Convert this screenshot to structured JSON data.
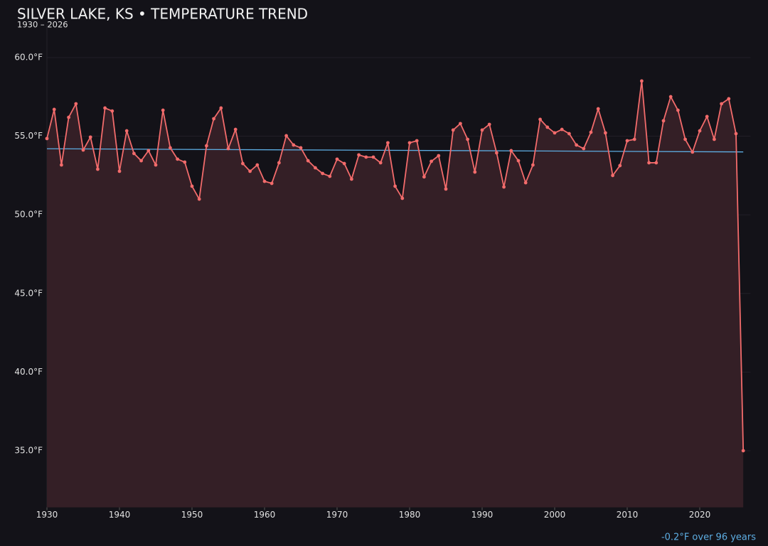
{
  "chart_data": {
    "type": "line",
    "title": "SILVER LAKE, KS • TEMPERATURE TREND",
    "subtitle": "1930 – 2026",
    "annotation": "-0.2°F over 96 years",
    "x": [
      1930,
      1931,
      1932,
      1933,
      1934,
      1935,
      1936,
      1937,
      1938,
      1939,
      1940,
      1941,
      1942,
      1943,
      1944,
      1945,
      1946,
      1947,
      1948,
      1949,
      1950,
      1951,
      1952,
      1953,
      1954,
      1955,
      1956,
      1957,
      1958,
      1959,
      1960,
      1961,
      1962,
      1963,
      1964,
      1965,
      1966,
      1967,
      1968,
      1969,
      1970,
      1971,
      1972,
      1973,
      1974,
      1975,
      1976,
      1977,
      1978,
      1979,
      1980,
      1981,
      1982,
      1983,
      1984,
      1985,
      1986,
      1987,
      1988,
      1989,
      1990,
      1991,
      1992,
      1993,
      1994,
      1995,
      1996,
      1997,
      1998,
      1999,
      2000,
      2001,
      2002,
      2003,
      2004,
      2005,
      2006,
      2007,
      2008,
      2009,
      2010,
      2011,
      2012,
      2013,
      2014,
      2015,
      2016,
      2017,
      2018,
      2019,
      2020,
      2021,
      2022,
      2023,
      2024,
      2025,
      2026
    ],
    "series": [
      {
        "color": "#f26b6b",
        "fill": "#341f26",
        "values": [
          54.85,
          56.7,
          53.17,
          56.2,
          57.06,
          54.12,
          54.94,
          52.9,
          56.79,
          56.6,
          52.77,
          55.34,
          53.9,
          53.44,
          54.08,
          53.17,
          56.65,
          54.26,
          53.54,
          53.35,
          51.82,
          51.0,
          54.39,
          56.11,
          56.79,
          54.21,
          55.43,
          53.26,
          52.77,
          53.17,
          52.13,
          52.0,
          53.31,
          55.03,
          54.44,
          54.26,
          53.44,
          52.99,
          52.63,
          52.45,
          53.54,
          53.26,
          52.27,
          53.81,
          53.67,
          53.67,
          53.31,
          54.58,
          51.82,
          51.05,
          54.58,
          54.71,
          52.41,
          53.4,
          53.76,
          51.64,
          55.39,
          55.8,
          54.8,
          52.72,
          55.39,
          55.75,
          53.94,
          51.77,
          54.08,
          53.44,
          52.04,
          53.17,
          56.07,
          55.57,
          55.21,
          55.43,
          55.16,
          54.44,
          54.21,
          55.25,
          56.74,
          55.21,
          52.5,
          53.13,
          54.71,
          54.8,
          58.51,
          53.31,
          53.31,
          55.98,
          57.51,
          56.65,
          54.8,
          53.99,
          55.34,
          56.25,
          54.8,
          57.06,
          57.38,
          55.16,
          35.0
        ]
      }
    ],
    "trend_line": {
      "color": "#5dade2",
      "x": [
        1930,
        2026
      ],
      "values": [
        54.2,
        54.0
      ]
    },
    "xlim": [
      1930,
      2027
    ],
    "ylim": [
      31.4,
      62.1
    ],
    "xticks": [
      1930,
      1940,
      1950,
      1960,
      1970,
      1980,
      1990,
      2000,
      2010,
      2020
    ],
    "yticks": [
      {
        "value": 35,
        "label": "35.0°F"
      },
      {
        "value": 40,
        "label": "40.0°F"
      },
      {
        "value": 45,
        "label": "45.0°F"
      },
      {
        "value": 50,
        "label": "50.0°F"
      },
      {
        "value": 55,
        "label": "55.0°F"
      },
      {
        "value": 60,
        "label": "60.0°F"
      }
    ],
    "grid": true
  }
}
